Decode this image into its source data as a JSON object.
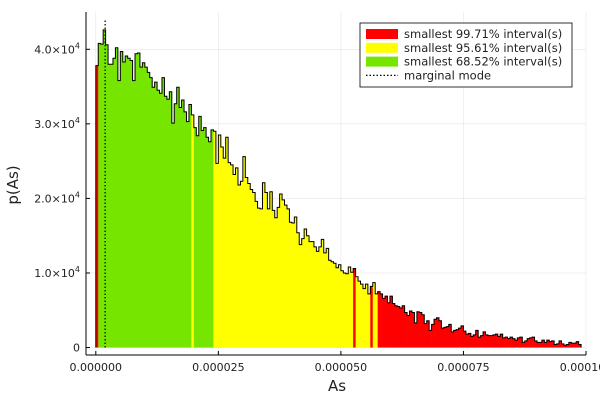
{
  "chart_data": {
    "type": "histogram",
    "title": "",
    "xlabel": "As",
    "ylabel": "p(As)",
    "xlim": [
      -2e-06,
      0.0001
    ],
    "ylim": [
      -1000,
      45000
    ],
    "grid": true,
    "legend_position": "top-right",
    "x_ticks": [
      {
        "value": 0,
        "label": "0.000000"
      },
      {
        "value": 2.5e-05,
        "label": "0.000025"
      },
      {
        "value": 5e-05,
        "label": "0.000050"
      },
      {
        "value": 7.5e-05,
        "label": "0.000075"
      },
      {
        "value": 0.0001,
        "label": "0.000100"
      }
    ],
    "y_ticks": [
      {
        "value": 0,
        "label": "0"
      },
      {
        "value": 10000,
        "mantissa": "1.0×10",
        "exponent": "4"
      },
      {
        "value": 20000,
        "mantissa": "2.0×10",
        "exponent": "4"
      },
      {
        "value": 30000,
        "mantissa": "3.0×10",
        "exponent": "4"
      },
      {
        "value": 40000,
        "mantissa": "4.0×10",
        "exponent": "4"
      }
    ],
    "bin_start": 0.0,
    "bin_width": 5e-07,
    "densities": [
      37800,
      40800,
      40700,
      42600,
      40600,
      38000,
      38000,
      38800,
      40200,
      35800,
      39700,
      38300,
      39100,
      38800,
      38500,
      35800,
      39400,
      39500,
      37600,
      38200,
      37600,
      36900,
      36200,
      34900,
      35600,
      34500,
      34100,
      36200,
      33700,
      33300,
      34300,
      30100,
      32700,
      34900,
      32200,
      33200,
      31600,
      30300,
      32600,
      31200,
      29500,
      28400,
      31000,
      29100,
      29500,
      28200,
      27600,
      29200,
      29000,
      24700,
      28500,
      26900,
      25400,
      28200,
      24800,
      24500,
      23200,
      24100,
      21800,
      22300,
      25600,
      22800,
      22000,
      21200,
      20800,
      19600,
      18700,
      18600,
      22100,
      20800,
      18600,
      20900,
      18400,
      17400,
      18800,
      20600,
      19800,
      19100,
      18600,
      16800,
      16700,
      17500,
      15400,
      13800,
      14600,
      15900,
      15000,
      14200,
      14200,
      13500,
      12900,
      13500,
      14500,
      12700,
      13300,
      11700,
      11500,
      11300,
      10700,
      11100,
      10300,
      10000,
      9900,
      10800,
      10100,
      10600,
      9500,
      8900,
      8500,
      7900,
      8500,
      7200,
      8200,
      8700,
      7200,
      7500,
      7200,
      6600,
      6900,
      6000,
      6900,
      5900,
      5600,
      5500,
      5300,
      5600,
      4700,
      4300,
      4900,
      4700,
      3300,
      4800,
      4700,
      4400,
      3200,
      3600,
      2300,
      3100,
      3800,
      4000,
      3600,
      2600,
      2700,
      2800,
      3100,
      2100,
      2300,
      2400,
      2600,
      2900,
      2200,
      1800,
      1900,
      1500,
      1700,
      2300,
      1400,
      1600,
      2100,
      1700,
      1600,
      1600,
      1700,
      1800,
      1500,
      1800,
      1300,
      1400,
      1200,
      1400,
      1200,
      1000,
      1300,
      1400,
      700,
      900,
      1200,
      1300,
      1400,
      900,
      700,
      700,
      1000,
      700,
      1000,
      800,
      900,
      400,
      500,
      900,
      500,
      300,
      400,
      700,
      600,
      600,
      800,
      400
    ],
    "mode": 1.9e-06,
    "regions": [
      {
        "name": "smallest 68.52% interval(s)",
        "color": "#76e600",
        "ranges": [
          [
            5e-07,
            1.95e-05
          ],
          [
            2e-05,
            2.4e-05
          ]
        ]
      },
      {
        "name": "smallest 95.61% interval(s)",
        "color": "#ffff00",
        "ranges": [
          [
            1.95e-05,
            2e-05
          ],
          [
            2.4e-05,
            5.25e-05
          ],
          [
            5.3e-05,
            5.6e-05
          ],
          [
            5.65e-05,
            5.75e-05
          ]
        ]
      },
      {
        "name": "smallest 99.71% interval(s)",
        "color": "#ff0000",
        "ranges": [
          [
            5.25e-05,
            5.3e-05
          ],
          [
            5.6e-05,
            5.65e-05
          ],
          [
            5.75e-05,
            9.9e-05
          ]
        ]
      }
    ],
    "legend": [
      {
        "label": "smallest 99.71% interval(s)",
        "color": "#ff0000",
        "kind": "patch"
      },
      {
        "label": "smallest 95.61% interval(s)",
        "color": "#ffff00",
        "kind": "patch"
      },
      {
        "label": "smallest 68.52% interval(s)",
        "color": "#76e600",
        "kind": "patch"
      },
      {
        "label": "marginal mode",
        "color": "#000000",
        "kind": "dotted-line"
      }
    ]
  }
}
